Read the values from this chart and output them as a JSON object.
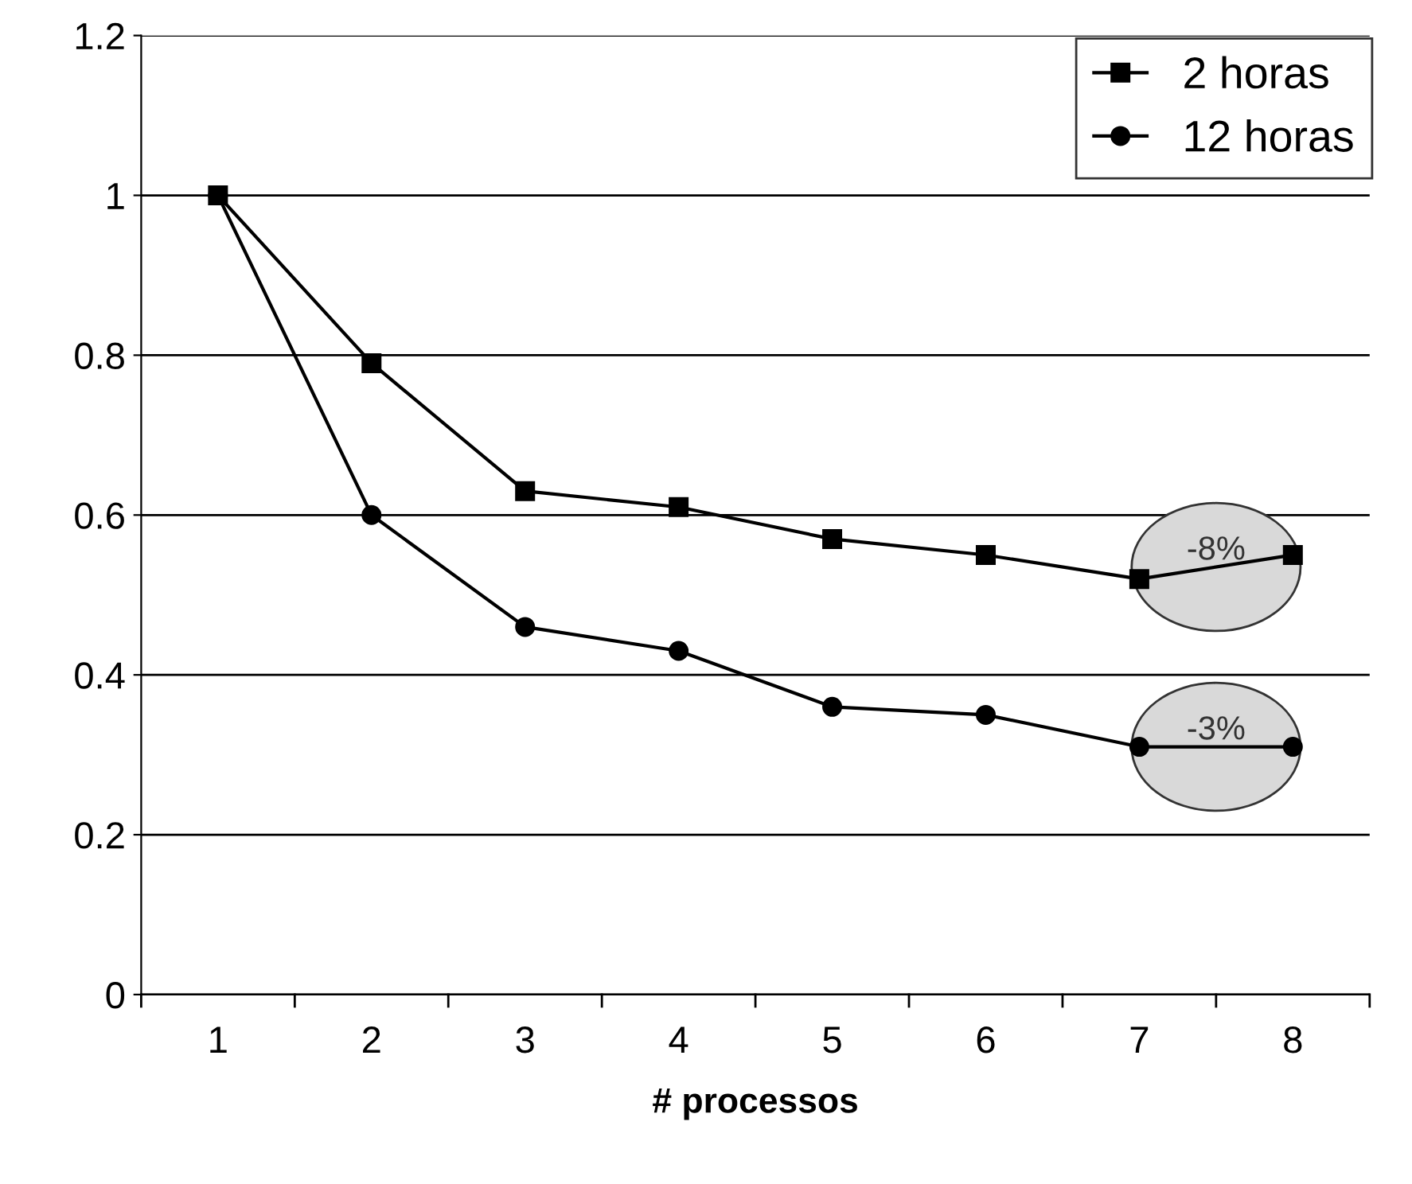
{
  "chart_data": {
    "type": "line",
    "xlabel": "# processos",
    "categories": [
      "1",
      "2",
      "3",
      "4",
      "5",
      "6",
      "7",
      "8"
    ],
    "series": [
      {
        "name": "2 horas",
        "color": "#000000",
        "marker": "square",
        "values": [
          1.0,
          0.79,
          0.63,
          0.61,
          0.57,
          0.55,
          0.52,
          0.55
        ]
      },
      {
        "name": "12 horas",
        "color": "#000000",
        "marker": "circle",
        "values": [
          1.0,
          0.6,
          0.46,
          0.43,
          0.36,
          0.35,
          0.31,
          0.31
        ]
      }
    ],
    "ylim": [
      0,
      1.2
    ],
    "yticks": [
      0,
      0.2,
      0.4,
      0.6,
      0.8,
      1,
      1.2
    ],
    "grid": "y",
    "legend": "top right",
    "line_style": "solid",
    "annotations": [
      "-8%",
      "-3%"
    ]
  }
}
